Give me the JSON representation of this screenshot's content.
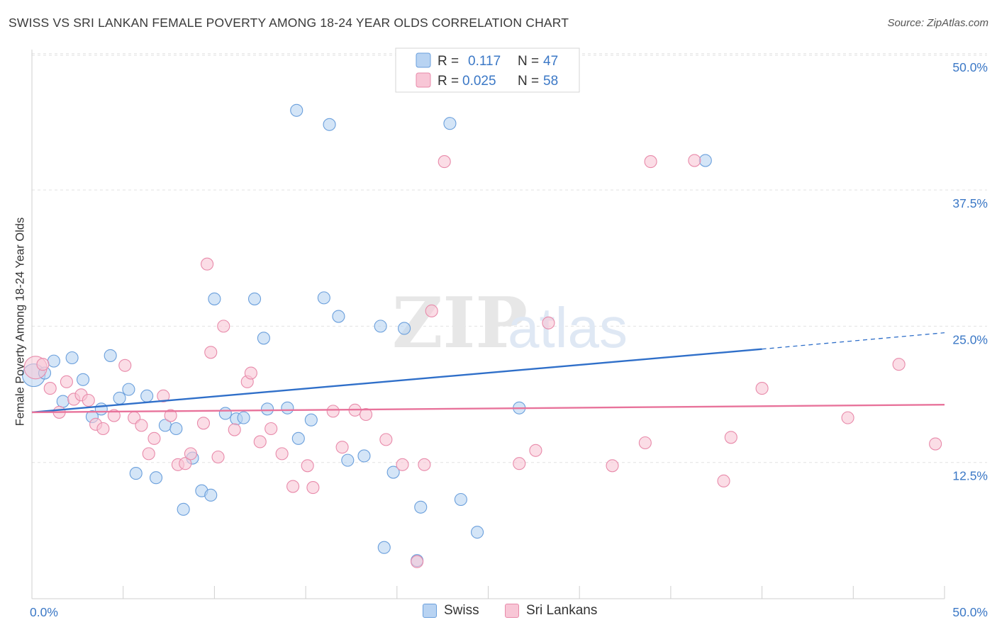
{
  "title": "SWISS VS SRI LANKAN FEMALE POVERTY AMONG 18-24 YEAR OLDS CORRELATION CHART",
  "source": "Source: ZipAtlas.com",
  "watermark": {
    "zip": "ZIP",
    "atlas": "atlas"
  },
  "colors": {
    "swiss_fill": "#b8d3f2",
    "swiss_stroke": "#6a9fdc",
    "swiss_line": "#2f6fc9",
    "srilankan_fill": "#f8c6d6",
    "srilankan_stroke": "#e88aaa",
    "srilankan_line": "#e8739b",
    "value_blue": "#3b78c6",
    "grid": "#e2e2e2"
  },
  "legend": {
    "rows": [
      {
        "r_label": "R =",
        "r_value": "0.117",
        "n_label": "N =",
        "n_value": "47"
      },
      {
        "r_label": "R =",
        "r_value": "0.025",
        "n_label": "N =",
        "n_value": "58"
      }
    ]
  },
  "bottom_legend": {
    "swiss": "Swiss",
    "srilankan": "Sri Lankans"
  },
  "chart_data": {
    "type": "scatter",
    "title": "SWISS VS SRI LANKAN FEMALE POVERTY AMONG 18-24 YEAR OLDS CORRELATION CHART",
    "xlabel": "",
    "ylabel": "Female Poverty Among 18-24 Year Olds",
    "xlim": [
      0,
      50
    ],
    "ylim": [
      0,
      52
    ],
    "x_tick_labels": [
      "0.0%",
      "50.0%"
    ],
    "y_ticks": [
      12.5,
      25.0,
      37.5,
      50.0
    ],
    "y_tick_labels": [
      "12.5%",
      "25.0%",
      "37.5%",
      "50.0%"
    ],
    "grid": true,
    "legend_position": "top-center",
    "series": [
      {
        "name": "Swiss",
        "r": 0.117,
        "n": 47,
        "trend": {
          "x0": 0,
          "y0": 17.1,
          "x1": 40,
          "y1": 22.9,
          "dashed_to_x": 50,
          "dashed_to_y": 24.4
        },
        "points": [
          [
            0.1,
            20.5
          ],
          [
            0.7,
            20.7
          ],
          [
            1.2,
            21.8
          ],
          [
            1.7,
            18.1
          ],
          [
            2.2,
            22.1
          ],
          [
            2.8,
            20.1
          ],
          [
            3.3,
            16.7
          ],
          [
            3.8,
            17.4
          ],
          [
            4.3,
            22.3
          ],
          [
            4.8,
            18.4
          ],
          [
            5.3,
            19.2
          ],
          [
            5.7,
            11.5
          ],
          [
            6.3,
            18.6
          ],
          [
            6.8,
            11.1
          ],
          [
            7.3,
            15.9
          ],
          [
            7.9,
            15.6
          ],
          [
            8.3,
            8.2
          ],
          [
            8.8,
            12.9
          ],
          [
            9.3,
            9.9
          ],
          [
            9.8,
            9.5
          ],
          [
            10.0,
            27.5
          ],
          [
            10.6,
            17.0
          ],
          [
            11.2,
            16.5
          ],
          [
            11.6,
            16.6
          ],
          [
            12.2,
            27.5
          ],
          [
            12.7,
            23.9
          ],
          [
            12.9,
            17.4
          ],
          [
            14.0,
            17.5
          ],
          [
            14.5,
            44.8
          ],
          [
            14.6,
            14.7
          ],
          [
            15.3,
            16.4
          ],
          [
            16.0,
            27.6
          ],
          [
            16.3,
            43.5
          ],
          [
            16.8,
            25.9
          ],
          [
            17.3,
            12.7
          ],
          [
            18.2,
            13.1
          ],
          [
            19.1,
            25.0
          ],
          [
            19.3,
            4.7
          ],
          [
            19.8,
            11.6
          ],
          [
            20.4,
            24.8
          ],
          [
            21.1,
            3.5
          ],
          [
            21.3,
            8.4
          ],
          [
            22.9,
            43.6
          ],
          [
            23.5,
            9.1
          ],
          [
            24.4,
            6.1
          ],
          [
            26.7,
            17.5
          ],
          [
            36.9,
            40.2
          ]
        ]
      },
      {
        "name": "Sri Lankans",
        "r": 0.025,
        "n": 58,
        "trend": {
          "x0": 0,
          "y0": 17.1,
          "x1": 50,
          "y1": 17.8
        },
        "points": [
          [
            0.2,
            21.2
          ],
          [
            0.6,
            21.5
          ],
          [
            1.0,
            19.3
          ],
          [
            1.5,
            17.1
          ],
          [
            1.9,
            19.9
          ],
          [
            2.3,
            18.3
          ],
          [
            2.7,
            18.7
          ],
          [
            3.1,
            18.2
          ],
          [
            3.5,
            16.0
          ],
          [
            3.9,
            15.6
          ],
          [
            4.5,
            16.8
          ],
          [
            5.1,
            21.4
          ],
          [
            5.6,
            16.6
          ],
          [
            6.0,
            15.9
          ],
          [
            6.4,
            13.3
          ],
          [
            6.7,
            14.7
          ],
          [
            7.2,
            18.6
          ],
          [
            7.6,
            16.8
          ],
          [
            8.0,
            12.3
          ],
          [
            8.4,
            12.4
          ],
          [
            8.7,
            13.3
          ],
          [
            9.4,
            16.1
          ],
          [
            9.6,
            30.7
          ],
          [
            9.8,
            22.6
          ],
          [
            10.2,
            13.0
          ],
          [
            10.5,
            25.0
          ],
          [
            11.1,
            15.5
          ],
          [
            11.8,
            19.9
          ],
          [
            12.0,
            20.7
          ],
          [
            12.5,
            14.4
          ],
          [
            13.1,
            15.6
          ],
          [
            13.7,
            13.3
          ],
          [
            14.3,
            10.3
          ],
          [
            15.1,
            12.2
          ],
          [
            15.4,
            10.2
          ],
          [
            16.5,
            17.2
          ],
          [
            17.0,
            13.9
          ],
          [
            17.7,
            17.3
          ],
          [
            18.3,
            16.9
          ],
          [
            19.4,
            14.6
          ],
          [
            20.3,
            12.3
          ],
          [
            21.1,
            3.4
          ],
          [
            21.5,
            12.3
          ],
          [
            21.9,
            26.4
          ],
          [
            22.6,
            40.1
          ],
          [
            26.7,
            12.4
          ],
          [
            27.6,
            13.6
          ],
          [
            28.3,
            25.3
          ],
          [
            31.8,
            12.2
          ],
          [
            33.6,
            14.3
          ],
          [
            33.9,
            40.1
          ],
          [
            36.3,
            40.2
          ],
          [
            37.9,
            10.8
          ],
          [
            38.3,
            14.8
          ],
          [
            40.0,
            19.3
          ],
          [
            44.7,
            16.6
          ],
          [
            47.5,
            21.5
          ],
          [
            49.5,
            14.2
          ]
        ]
      }
    ]
  }
}
